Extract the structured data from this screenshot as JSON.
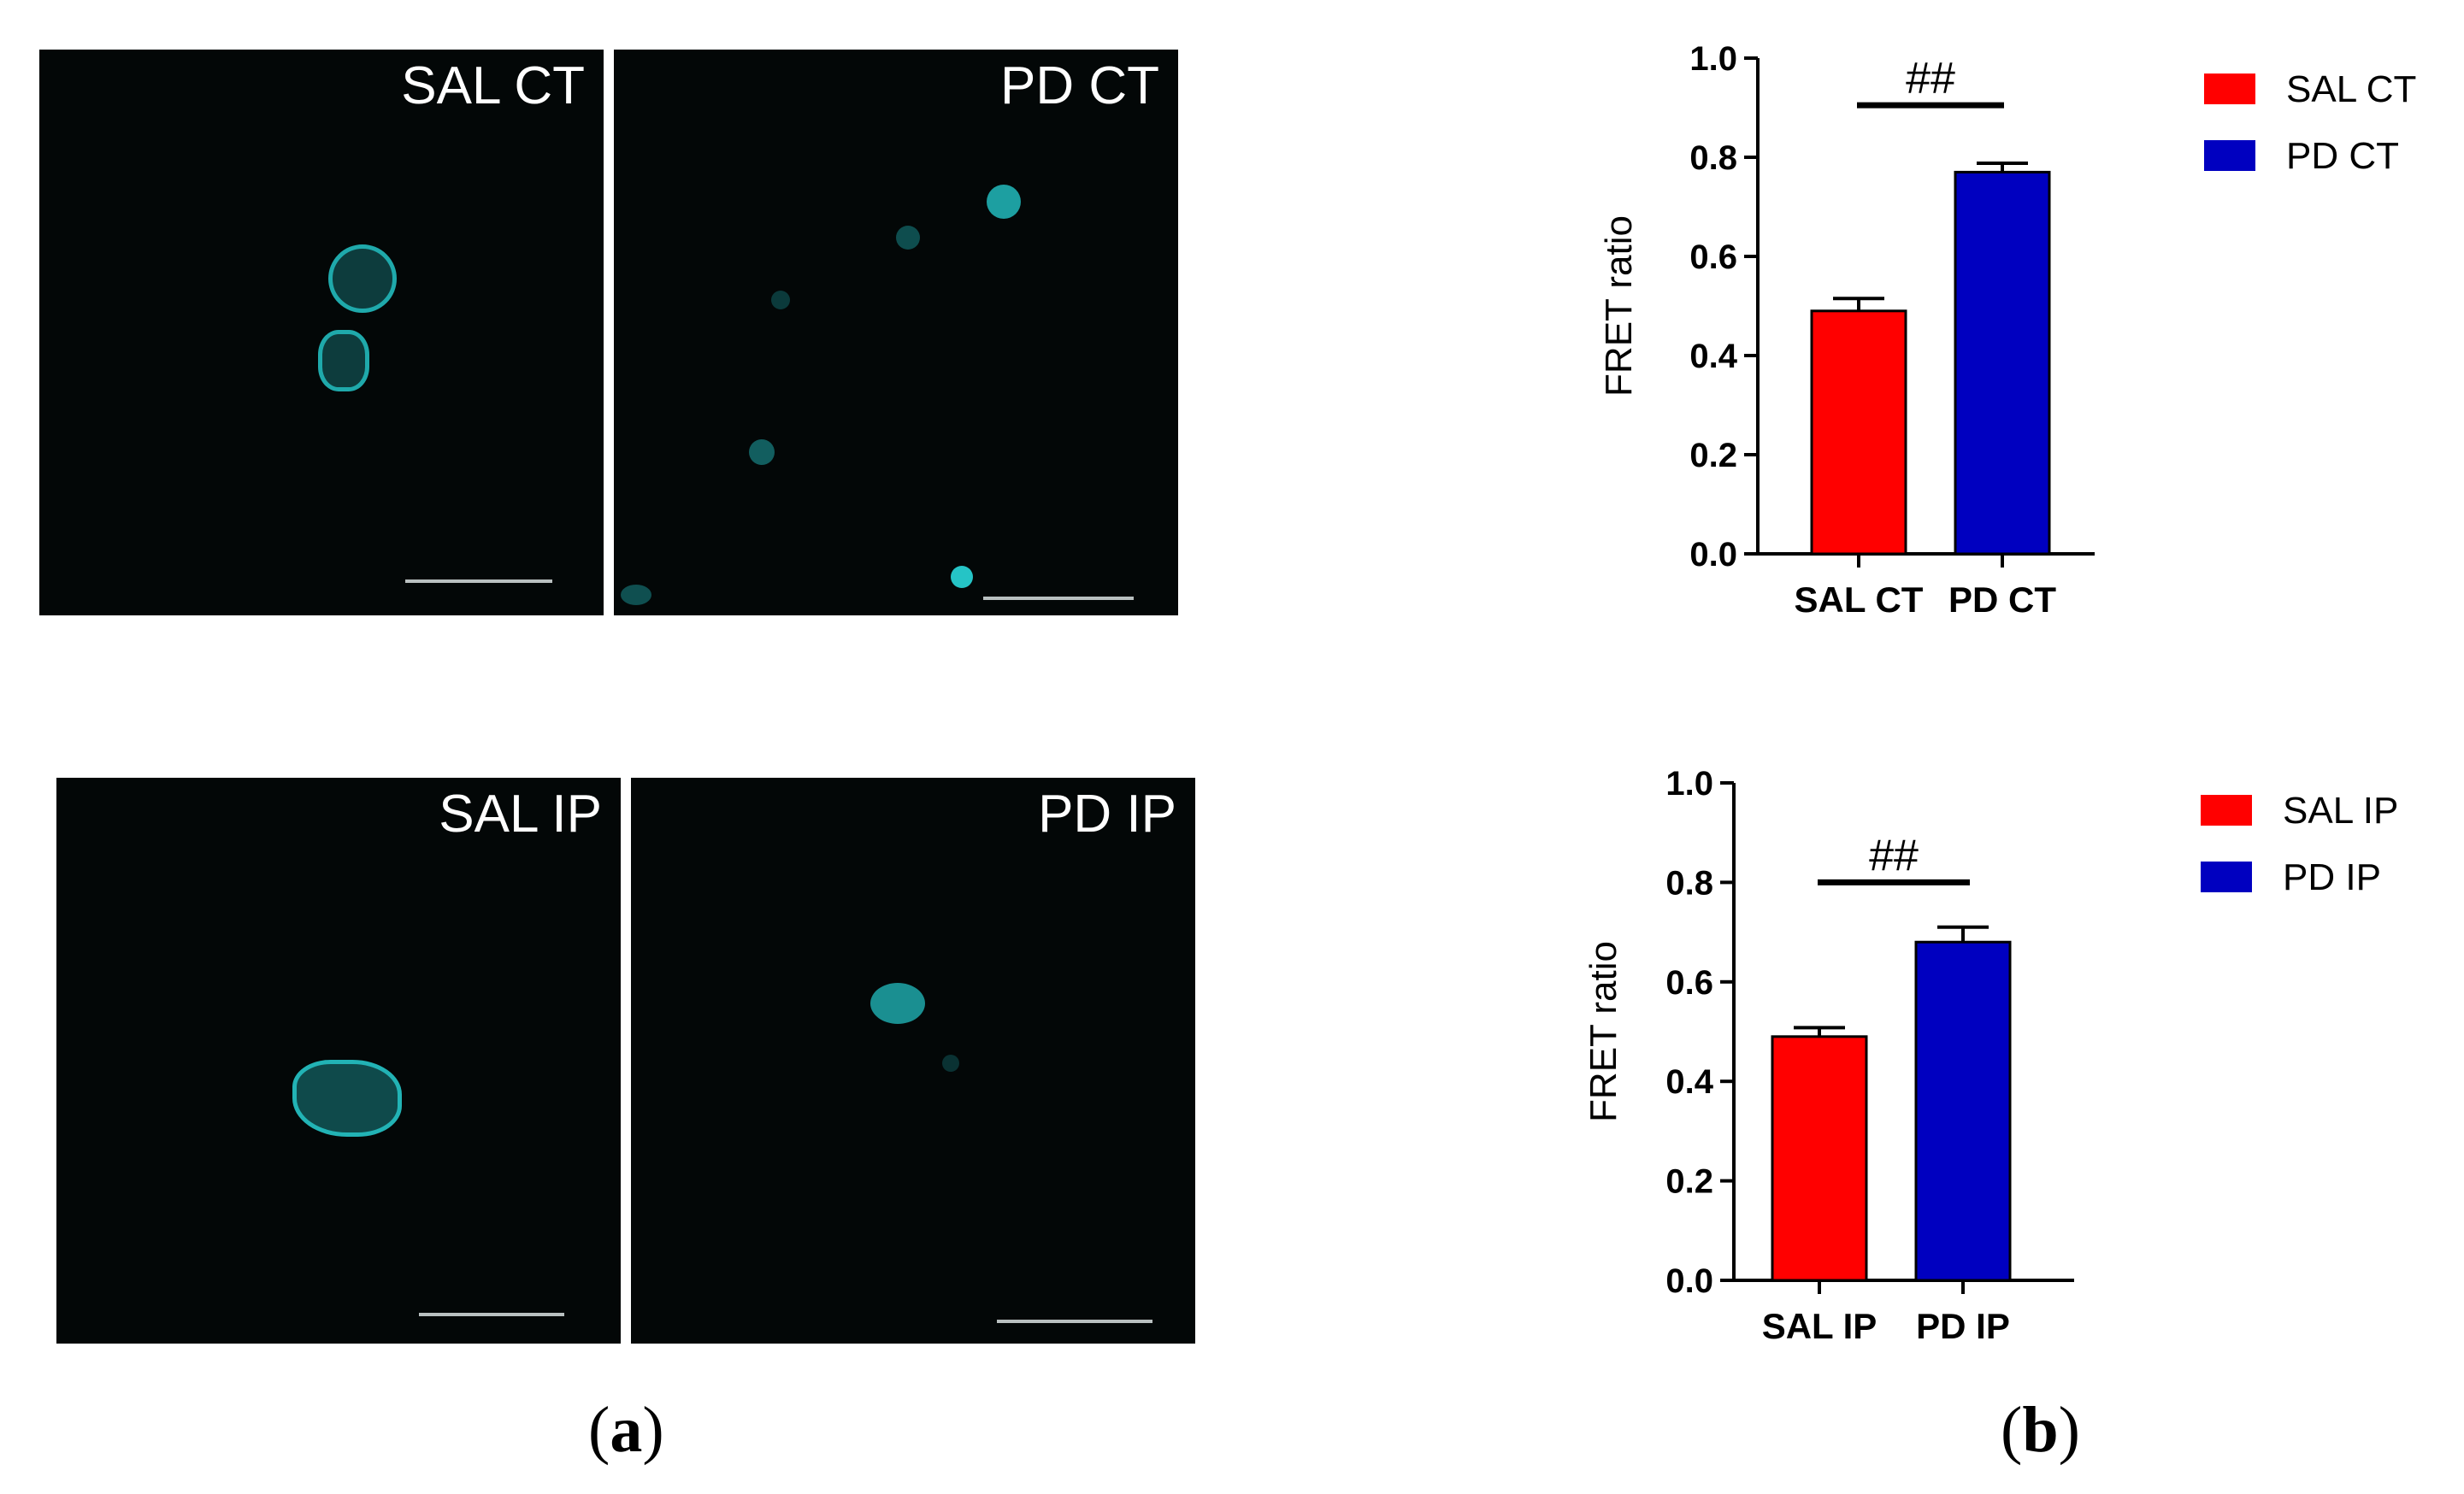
{
  "figure_a": {
    "panels": [
      {
        "label": "SAL CT"
      },
      {
        "label": "PD CT"
      },
      {
        "label": "SAL IP"
      },
      {
        "label": "PD IP"
      }
    ],
    "caption": {
      "open": "(",
      "letter": "a",
      "close": ")"
    }
  },
  "figure_b": {
    "caption": {
      "open": "(",
      "letter": "b",
      "close": ")"
    }
  },
  "colors": {
    "sal": "#ff0000",
    "pd": "#0000c0",
    "cell": "#22b3b5",
    "panel_bg": "#030707"
  },
  "chart_data": [
    {
      "type": "bar",
      "categories": [
        "SAL CT",
        "PD CT"
      ],
      "values": [
        0.49,
        0.77
      ],
      "errors": [
        0.025,
        0.018
      ],
      "ylabel": "FRET ratio",
      "ylim": [
        0,
        1.0
      ],
      "yticks": [
        "0.0",
        "0.2",
        "0.4",
        "0.6",
        "0.8",
        "1.0"
      ],
      "significance": "##",
      "legend": [
        {
          "name": "SAL CT",
          "color": "#ff0000"
        },
        {
          "name": "PD CT",
          "color": "#0000c0"
        }
      ],
      "legend_position": "right"
    },
    {
      "type": "bar",
      "categories": [
        "SAL IP",
        "PD IP"
      ],
      "values": [
        0.49,
        0.68
      ],
      "errors": [
        0.018,
        0.03
      ],
      "ylabel": "FRET ratio",
      "ylim": [
        0,
        1.0
      ],
      "yticks": [
        "0.0",
        "0.2",
        "0.4",
        "0.6",
        "0.8",
        "1.0"
      ],
      "significance": "##",
      "legend": [
        {
          "name": "SAL IP",
          "color": "#ff0000"
        },
        {
          "name": "PD IP",
          "color": "#0000c0"
        }
      ],
      "legend_position": "right"
    }
  ]
}
